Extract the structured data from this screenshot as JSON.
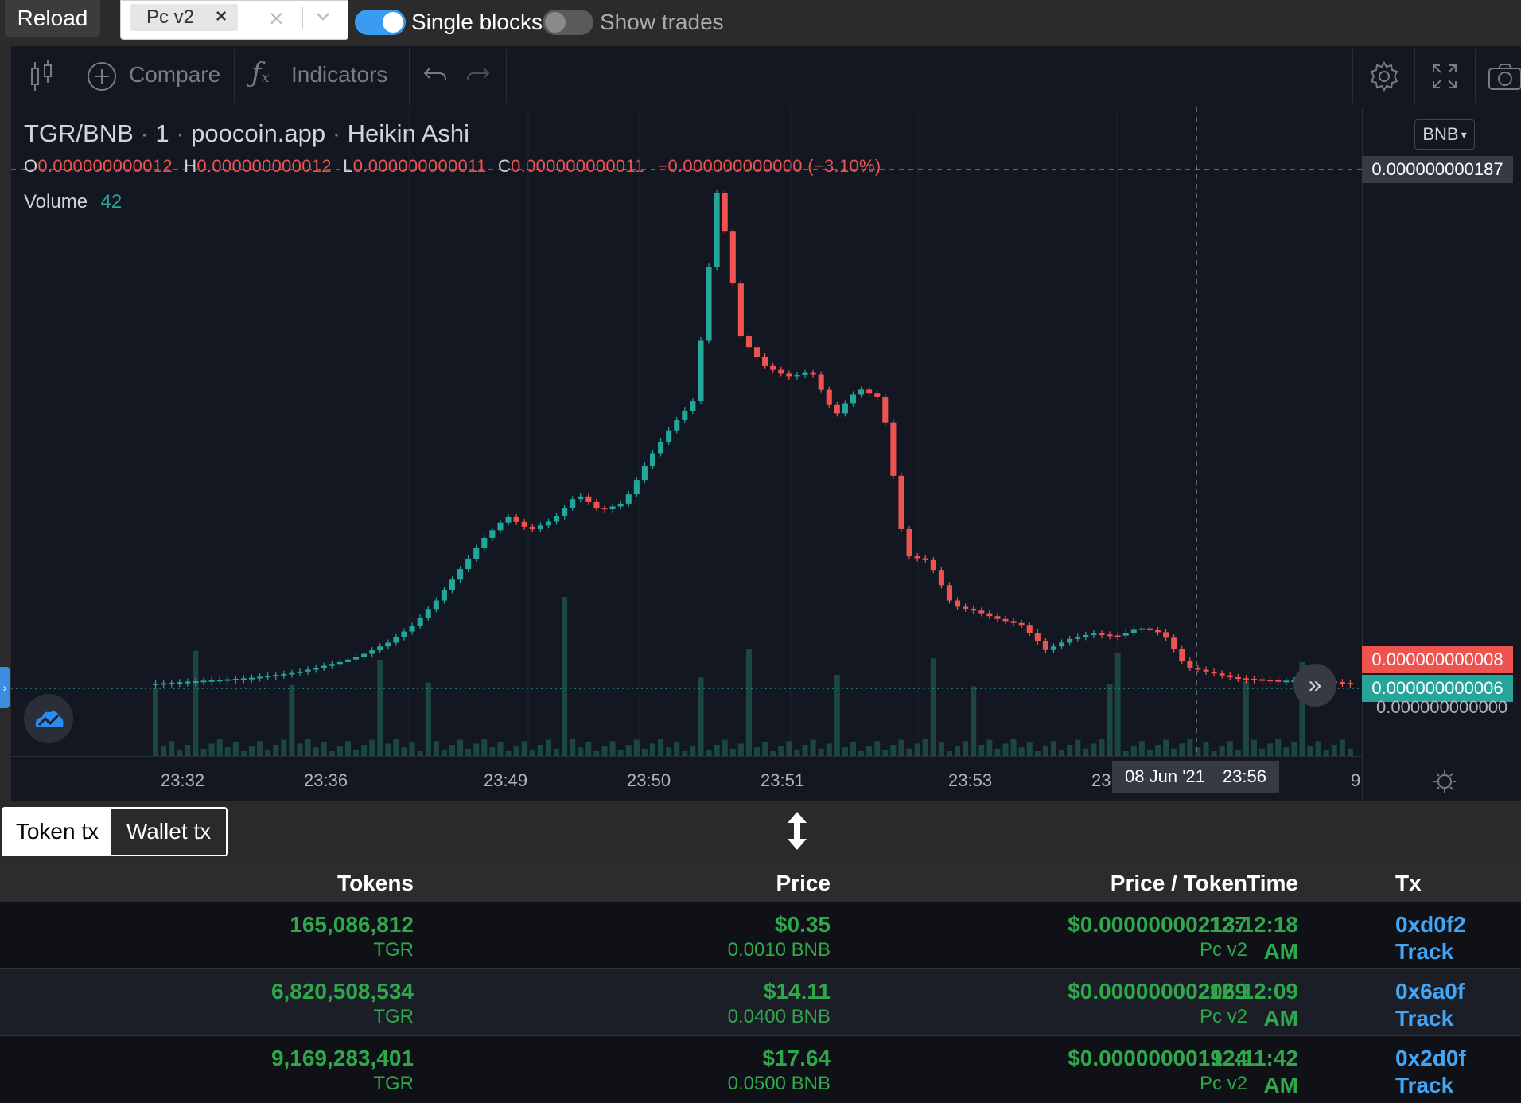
{
  "topbar": {
    "reload_label": "Reload",
    "selected_chip": "Pc v2",
    "chip_remove": "×",
    "clear_icon": "×",
    "single_blocks_label": "Single blocks",
    "single_blocks_on": true,
    "show_trades_label": "Show trades",
    "show_trades_on": false
  },
  "toolbar": {
    "compare_label": "Compare",
    "indicators_label": "Indicators"
  },
  "chart": {
    "symbol": "TGR/BNB",
    "interval": "1",
    "source": "poocoin.app",
    "style": "Heikin Ashi",
    "o_label": "O",
    "o_val": "0.000000000012",
    "h_label": "H",
    "h_val": "0.000000000012",
    "l_label": "L",
    "l_val": "0.000000000011",
    "c_label": "C",
    "c_val": "0.000000000011",
    "change": "−0.000000000000 (−3.10%)",
    "volume_label": "Volume",
    "volume_val": "42",
    "currency_btn": "BNB",
    "price_crosshair": "0.000000000187",
    "price_red": "0.000000000008",
    "price_green": "0.000000000006",
    "price_zero": "0.000000000000",
    "time_labels": [
      "23:32",
      "23:36",
      "23:49",
      "23:50",
      "23:51",
      "23:53",
      "23",
      "9"
    ],
    "crosshair_date": "08 Jun '21",
    "crosshair_time": "23:56"
  },
  "chart_data": {
    "type": "candlestick",
    "title": "TGR/BNB · 1 · poocoin.app · Heikin Ashi",
    "xlabel": "",
    "ylabel": "",
    "x_ticks": [
      "23:32",
      "23:36",
      "23:49",
      "23:50",
      "23:51",
      "23:53",
      "23:56"
    ],
    "price_profile": [
      6e-12,
      6.5e-12,
      7e-12,
      7.5e-12,
      8e-12,
      9e-12,
      1e-11,
      1.2e-11,
      1.4e-11,
      1.7e-11,
      2.1e-11,
      2.7e-11,
      3.6e-11,
      4.7e-11,
      5.8e-11,
      6.6e-11,
      6.1e-11,
      6.5e-11,
      7.4e-11,
      6.8e-11,
      7.1e-11,
      8.6e-11,
      9.8e-11,
      1.08e-10,
      1.85e-10,
      1.3e-10,
      1.2e-10,
      1.16e-10,
      1.18e-10,
      1.02e-10,
      1.12e-10,
      1.08e-10,
      5.2e-11,
      5e-11,
      3.4e-11,
      3.2e-11,
      2.9e-11,
      2.7e-11,
      1.8e-11,
      2.2e-11,
      2.4e-11,
      2.3e-11,
      2.6e-11,
      2.4e-11,
      1.2e-11,
      1e-11,
      8e-12,
      7.5e-12,
      7e-12,
      7.2e-12,
      6.8e-12,
      6e-12
    ],
    "colors": {
      "up": "#26a69a",
      "down": "#ef5350"
    }
  },
  "tabs": {
    "token_tx": "Token tx",
    "wallet_tx": "Wallet tx"
  },
  "table": {
    "headers": {
      "tokens": "Tokens",
      "price": "Price",
      "price_token": "Price / Token",
      "time": "Time",
      "tx": "Tx"
    },
    "rows": [
      {
        "tokens": "165,086,812",
        "symbol": "TGR",
        "price": "$0.35",
        "price_bnb": "0.0010 BNB",
        "ppt": "$0.000000002137",
        "pair": "Pc v2",
        "time": "12:12:18",
        "ampm": "AM",
        "tx": "0xd0f2",
        "track": "Track"
      },
      {
        "tokens": "6,820,508,534",
        "symbol": "TGR",
        "price": "$14.11",
        "price_bnb": "0.0400 BNB",
        "ppt": "$0.000000002069",
        "pair": "Pc v2",
        "time": "12:12:09",
        "ampm": "AM",
        "tx": "0x6a0f",
        "track": "Track"
      },
      {
        "tokens": "9,169,283,401",
        "symbol": "TGR",
        "price": "$17.64",
        "price_bnb": "0.0500 BNB",
        "ppt": "$0.000000001924",
        "pair": "Pc v2",
        "time": "12:11:42",
        "ampm": "AM",
        "tx": "0x2d0f",
        "track": "Track"
      }
    ]
  }
}
